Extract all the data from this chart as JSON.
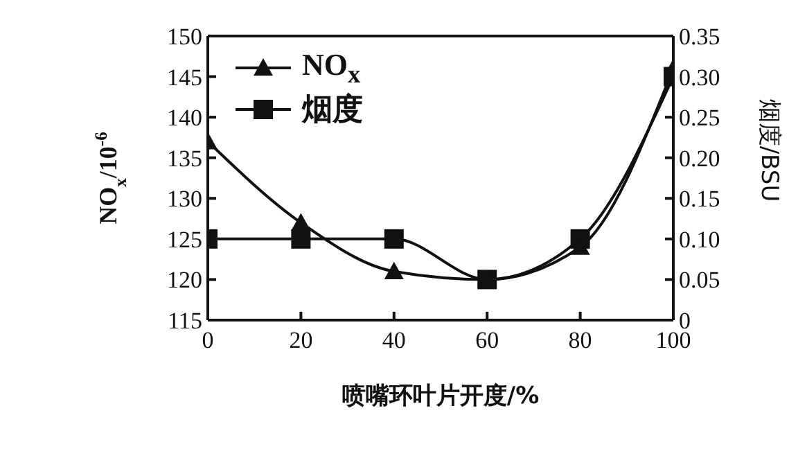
{
  "chart_data": {
    "type": "line",
    "xlabel": "喷嘴环叶片开度/%",
    "ylabel": "NO$_{x}$/10$^{-6}$",
    "y2label": "烟度/BSU",
    "x": [
      0,
      20,
      40,
      60,
      80,
      100
    ],
    "series": [
      {
        "name": "NO$_{x}$",
        "color": "#111111",
        "marker": "triangle",
        "values": [
          137,
          127,
          121,
          120,
          124,
          146
        ]
      },
      {
        "name": "烟度",
        "color": "#111111",
        "marker": "square",
        "axis": "y2",
        "values": [
          0.1,
          0.1,
          0.1,
          0.05,
          0.1,
          0.3
        ]
      }
    ],
    "xlim": [
      0,
      100
    ],
    "xticks": [
      0,
      20,
      40,
      60,
      80,
      100
    ],
    "ylim": [
      115,
      150
    ],
    "yticks": [
      115,
      120,
      125,
      130,
      135,
      140,
      145,
      150
    ],
    "y2lim": [
      0,
      0.35
    ],
    "y2ticks": [
      0,
      0.05,
      {
        "value": 0.1,
        "label": "0.10"
      },
      0.15,
      {
        "value": 0.2,
        "label": "0.20"
      },
      0.25,
      {
        "value": 0.3,
        "label": "0.30"
      },
      0.35
    ],
    "grid": false,
    "legend": "top left",
    "line_style": "solid"
  }
}
